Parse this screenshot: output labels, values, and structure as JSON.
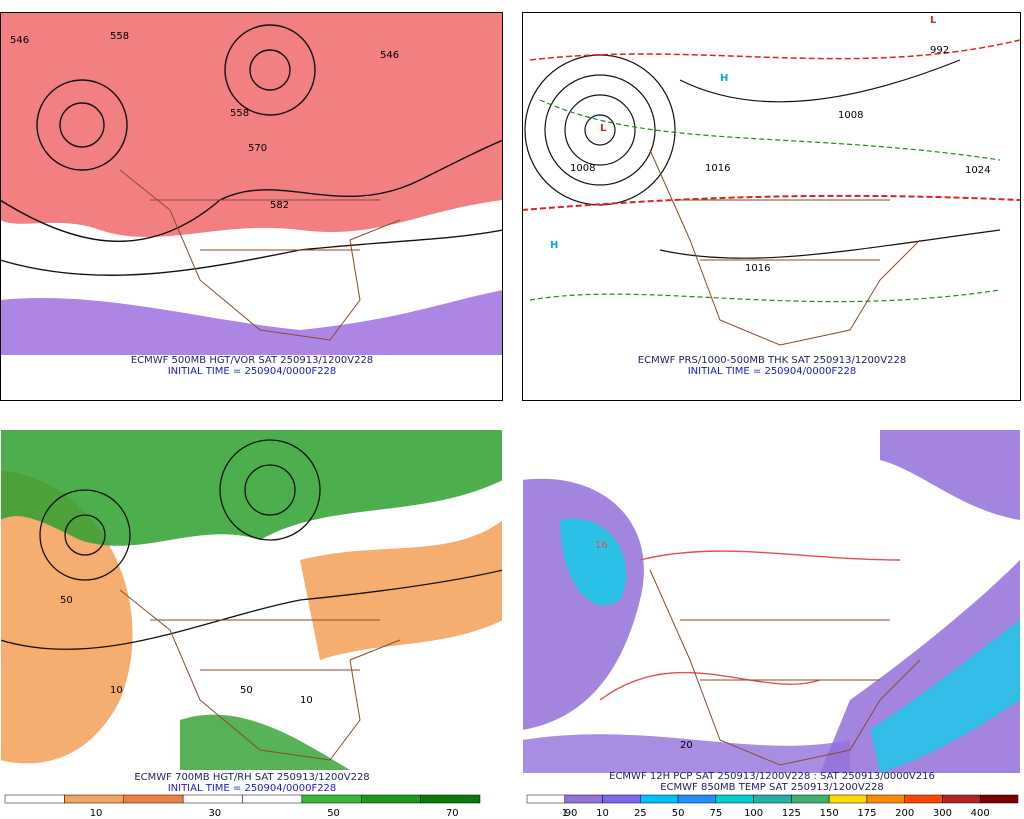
{
  "panels": [
    {
      "captions": [
        "ECMWF 500MB HGT/VOR SAT 250913/1200V228",
        "INITIAL TIME = 250904/0000F228"
      ],
      "labels": [
        "546",
        "558",
        "570",
        "582",
        "546",
        "558"
      ]
    },
    {
      "captions": [
        "ECMWF PRS/1000-500MB THK SAT 250913/1200V228",
        "INITIAL TIME = 250904/0000F228"
      ],
      "labels": [
        "H",
        "H",
        "L",
        "L",
        "1008",
        "1016",
        "1024",
        "992",
        "1016",
        "1008"
      ]
    },
    {
      "captions": [
        "ECMWF 700MB HGT/RH SAT 250913/1200V228",
        "INITIAL TIME = 250904/0000F228"
      ],
      "labels": [
        "50",
        "10",
        "50",
        "10"
      ],
      "colorbar": {
        "labels": [
          10,
          30,
          50,
          70,
          90
        ],
        "colors": [
          "#ffffff",
          "#f4a460",
          "#f08040",
          "#ffffff",
          "#ffffff",
          "#38b838",
          "#1a9a1a",
          "#0a7a0a"
        ]
      }
    },
    {
      "captions": [
        "ECMWF 12H PCP SAT 250913/1200V228 : SAT 250913/0000V216",
        "ECMWF 850MB TEMP SAT 250913/1200V228"
      ],
      "labels": [
        "16",
        "20"
      ],
      "colorbar": {
        "labels": [
          1,
          10,
          25,
          50,
          75,
          100,
          125,
          150,
          175,
          200,
          300,
          400
        ],
        "colors": [
          "#ffffff",
          "#9370db",
          "#7b68ee",
          "#00bfff",
          "#1e90ff",
          "#00ced1",
          "#20b2aa",
          "#3cb371",
          "#ffd700",
          "#ff8c00",
          "#ff4500",
          "#b22222",
          "#800000"
        ]
      }
    }
  ]
}
